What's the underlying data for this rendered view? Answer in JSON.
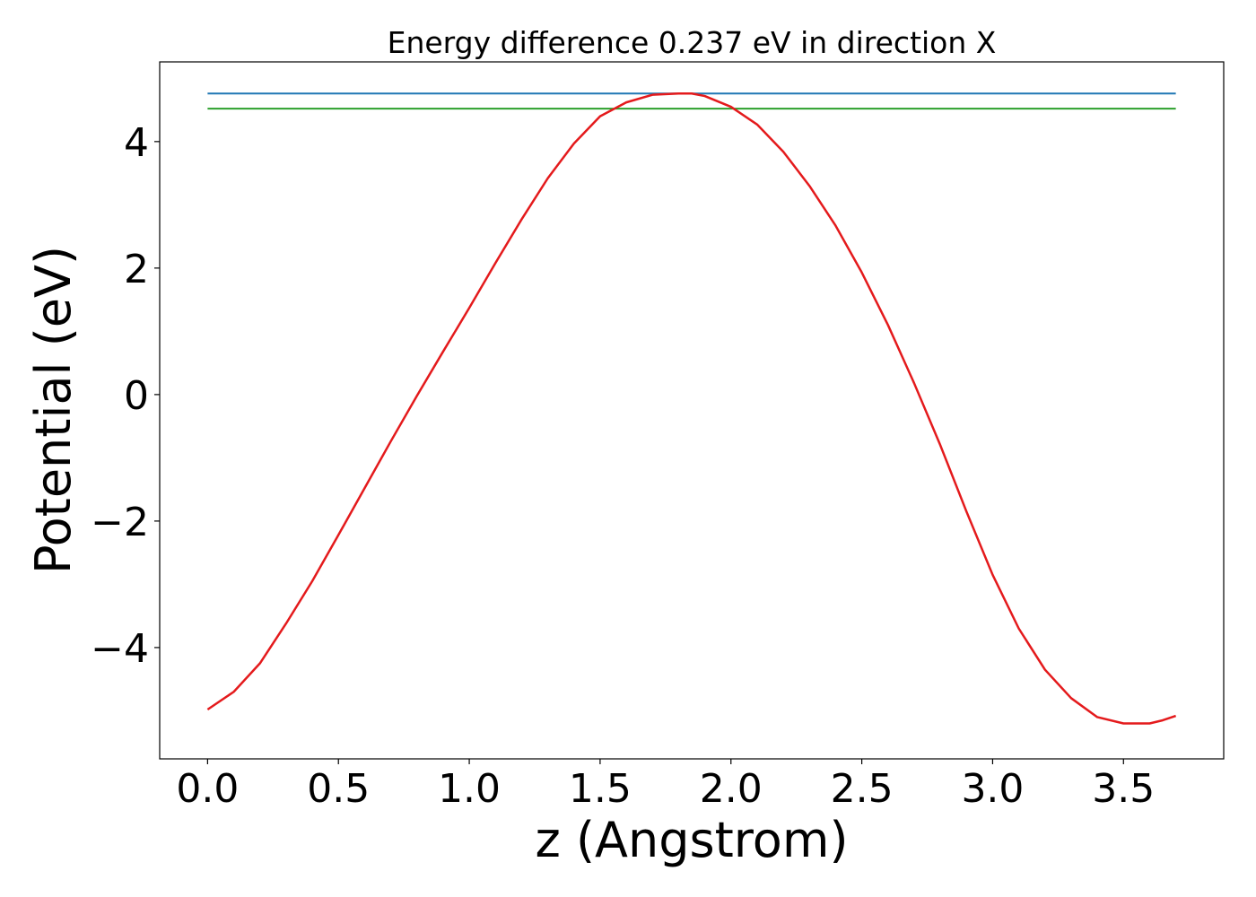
{
  "chart_data": {
    "type": "line",
    "title": "Energy difference 0.237 eV in direction X",
    "xlabel": "z (Angstrom)",
    "ylabel": "Potential (eV)",
    "xlim": [
      -0.183,
      3.883
    ],
    "ylim": [
      -5.76,
      5.26
    ],
    "xticks": [
      0.0,
      0.5,
      1.0,
      1.5,
      2.0,
      2.5,
      3.0,
      3.5
    ],
    "xtick_labels": [
      "0.0",
      "0.5",
      "1.0",
      "1.5",
      "2.0",
      "2.5",
      "3.0",
      "3.5"
    ],
    "yticks": [
      -4,
      -2,
      0,
      2,
      4
    ],
    "ytick_labels": [
      "−4",
      "−2",
      "0",
      "2",
      "4"
    ],
    "grid": false,
    "series": [
      {
        "color": "#1f77b4",
        "x": [
          0.0,
          3.7
        ],
        "y": [
          4.76,
          4.76
        ]
      },
      {
        "color": "#2ca02c",
        "x": [
          0.0,
          3.7
        ],
        "y": [
          4.52,
          4.52
        ]
      },
      {
        "color": "#e41a1c",
        "x": [
          0.0,
          0.1,
          0.2,
          0.3,
          0.4,
          0.5,
          0.6,
          0.7,
          0.8,
          0.9,
          1.0,
          1.1,
          1.2,
          1.3,
          1.4,
          1.5,
          1.6,
          1.7,
          1.8,
          1.85,
          1.9,
          2.0,
          2.1,
          2.2,
          2.3,
          2.4,
          2.5,
          2.6,
          2.7,
          2.8,
          2.9,
          3.0,
          3.1,
          3.2,
          3.3,
          3.4,
          3.5,
          3.55,
          3.6,
          3.65,
          3.7
        ],
        "y": [
          -4.98,
          -4.7,
          -4.25,
          -3.62,
          -2.95,
          -2.22,
          -1.48,
          -0.74,
          -0.02,
          0.68,
          1.37,
          2.08,
          2.77,
          3.42,
          3.97,
          4.4,
          4.62,
          4.74,
          4.76,
          4.76,
          4.72,
          4.55,
          4.27,
          3.84,
          3.3,
          2.67,
          1.93,
          1.1,
          0.18,
          -0.8,
          -1.85,
          -2.85,
          -3.7,
          -4.35,
          -4.8,
          -5.1,
          -5.2,
          -5.2,
          -5.2,
          -5.15,
          -5.08
        ]
      }
    ]
  }
}
